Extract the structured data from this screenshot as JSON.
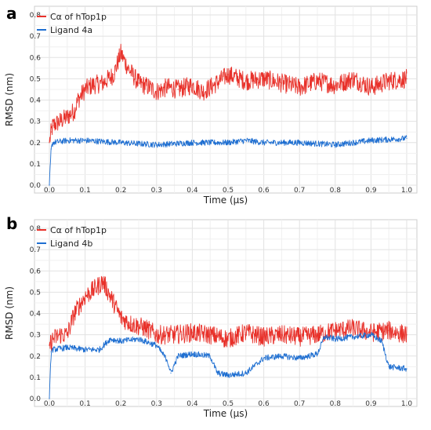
{
  "chart_data": [
    {
      "panel_label": "a",
      "type": "line",
      "xlabel": "Time (μs)",
      "ylabel": "RMSD (nm)",
      "xlim": [
        0.0,
        1.0
      ],
      "ylim": [
        0.0,
        0.8
      ],
      "xticks": [
        "0.0",
        "0.1",
        "0.2",
        "0.3",
        "0.4",
        "0.5",
        "0.6",
        "0.7",
        "0.8",
        "0.9",
        "1.0"
      ],
      "yticks": [
        "0.0",
        "0.1",
        "0.2",
        "0.3",
        "0.4",
        "0.5",
        "0.6",
        "0.7",
        "0.8"
      ],
      "grid": true,
      "legend_position": "top-left",
      "series": [
        {
          "name": "Cα of hTop1p",
          "color": "#e8312a",
          "x": [
            0.0,
            0.005,
            0.01,
            0.03,
            0.05,
            0.07,
            0.08,
            0.1,
            0.12,
            0.15,
            0.18,
            0.2,
            0.22,
            0.25,
            0.28,
            0.3,
            0.33,
            0.36,
            0.4,
            0.43,
            0.46,
            0.5,
            0.55,
            0.6,
            0.65,
            0.7,
            0.75,
            0.8,
            0.85,
            0.9,
            0.95,
            1.0
          ],
          "values": [
            0.2,
            0.25,
            0.28,
            0.3,
            0.32,
            0.35,
            0.4,
            0.45,
            0.47,
            0.48,
            0.52,
            0.62,
            0.55,
            0.48,
            0.46,
            0.44,
            0.46,
            0.45,
            0.47,
            0.44,
            0.47,
            0.52,
            0.49,
            0.5,
            0.48,
            0.46,
            0.49,
            0.47,
            0.5,
            0.46,
            0.49,
            0.5
          ]
        },
        {
          "name": "Ligand 4a",
          "color": "#1f6fd1",
          "x": [
            0.0,
            0.005,
            0.01,
            0.05,
            0.1,
            0.2,
            0.3,
            0.4,
            0.5,
            0.55,
            0.6,
            0.7,
            0.8,
            0.9,
            1.0
          ],
          "values": [
            0.0,
            0.17,
            0.2,
            0.21,
            0.21,
            0.2,
            0.19,
            0.2,
            0.2,
            0.21,
            0.2,
            0.2,
            0.19,
            0.21,
            0.22
          ]
        }
      ]
    },
    {
      "panel_label": "b",
      "type": "line",
      "xlabel": "Time (μs)",
      "ylabel": "RMSD (nm)",
      "xlim": [
        0.0,
        1.0
      ],
      "ylim": [
        0.0,
        0.8
      ],
      "xticks": [
        "0.0",
        "0.1",
        "0.2",
        "0.3",
        "0.4",
        "0.5",
        "0.6",
        "0.7",
        "0.8",
        "0.9",
        "1.0"
      ],
      "yticks": [
        "0.0",
        "0.1",
        "0.2",
        "0.3",
        "0.4",
        "0.5",
        "0.6",
        "0.7",
        "0.8"
      ],
      "grid": true,
      "legend_position": "top-left",
      "series": [
        {
          "name": "Cα of hTop1p",
          "color": "#e8312a",
          "x": [
            0.0,
            0.01,
            0.03,
            0.05,
            0.07,
            0.1,
            0.13,
            0.15,
            0.18,
            0.2,
            0.23,
            0.27,
            0.3,
            0.35,
            0.4,
            0.45,
            0.5,
            0.55,
            0.6,
            0.65,
            0.7,
            0.75,
            0.8,
            0.85,
            0.9,
            0.95,
            1.0
          ],
          "values": [
            0.25,
            0.28,
            0.3,
            0.3,
            0.4,
            0.48,
            0.52,
            0.55,
            0.45,
            0.38,
            0.35,
            0.33,
            0.3,
            0.3,
            0.31,
            0.3,
            0.28,
            0.31,
            0.29,
            0.3,
            0.29,
            0.3,
            0.32,
            0.33,
            0.31,
            0.32,
            0.3
          ]
        },
        {
          "name": "Ligand 4b",
          "color": "#1f6fd1",
          "x": [
            0.0,
            0.005,
            0.01,
            0.05,
            0.1,
            0.14,
            0.17,
            0.2,
            0.25,
            0.3,
            0.33,
            0.34,
            0.36,
            0.4,
            0.45,
            0.47,
            0.5,
            0.55,
            0.6,
            0.65,
            0.7,
            0.75,
            0.77,
            0.8,
            0.85,
            0.9,
            0.93,
            0.95,
            1.0
          ],
          "values": [
            0.0,
            0.22,
            0.23,
            0.24,
            0.23,
            0.23,
            0.28,
            0.27,
            0.28,
            0.25,
            0.18,
            0.12,
            0.2,
            0.21,
            0.2,
            0.12,
            0.11,
            0.12,
            0.19,
            0.2,
            0.19,
            0.21,
            0.29,
            0.28,
            0.29,
            0.3,
            0.27,
            0.15,
            0.14
          ]
        }
      ]
    }
  ]
}
